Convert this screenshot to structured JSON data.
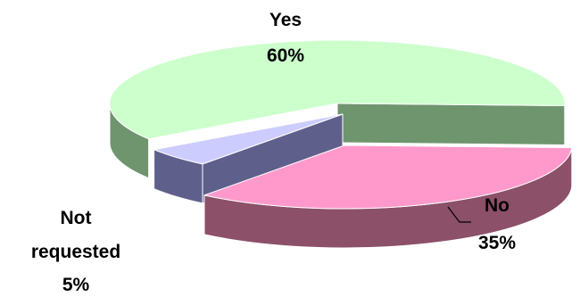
{
  "chart_data": {
    "type": "pie",
    "style": "3d-exploded",
    "title": "",
    "slices": [
      {
        "label_lines": [
          "Yes"
        ],
        "percent_label": "60%",
        "value": 60,
        "top_color": "#ccffcc",
        "side_color": "#6f956f"
      },
      {
        "label_lines": [
          "No"
        ],
        "percent_label": "35%",
        "value": 35,
        "top_color": "#ff99cc",
        "side_color": "#8c5068"
      },
      {
        "label_lines": [
          "Not",
          "requested"
        ],
        "percent_label": "5%",
        "value": 5,
        "top_color": "#ccccff",
        "side_color": "#5f5f8c"
      }
    ],
    "legend": "none"
  }
}
